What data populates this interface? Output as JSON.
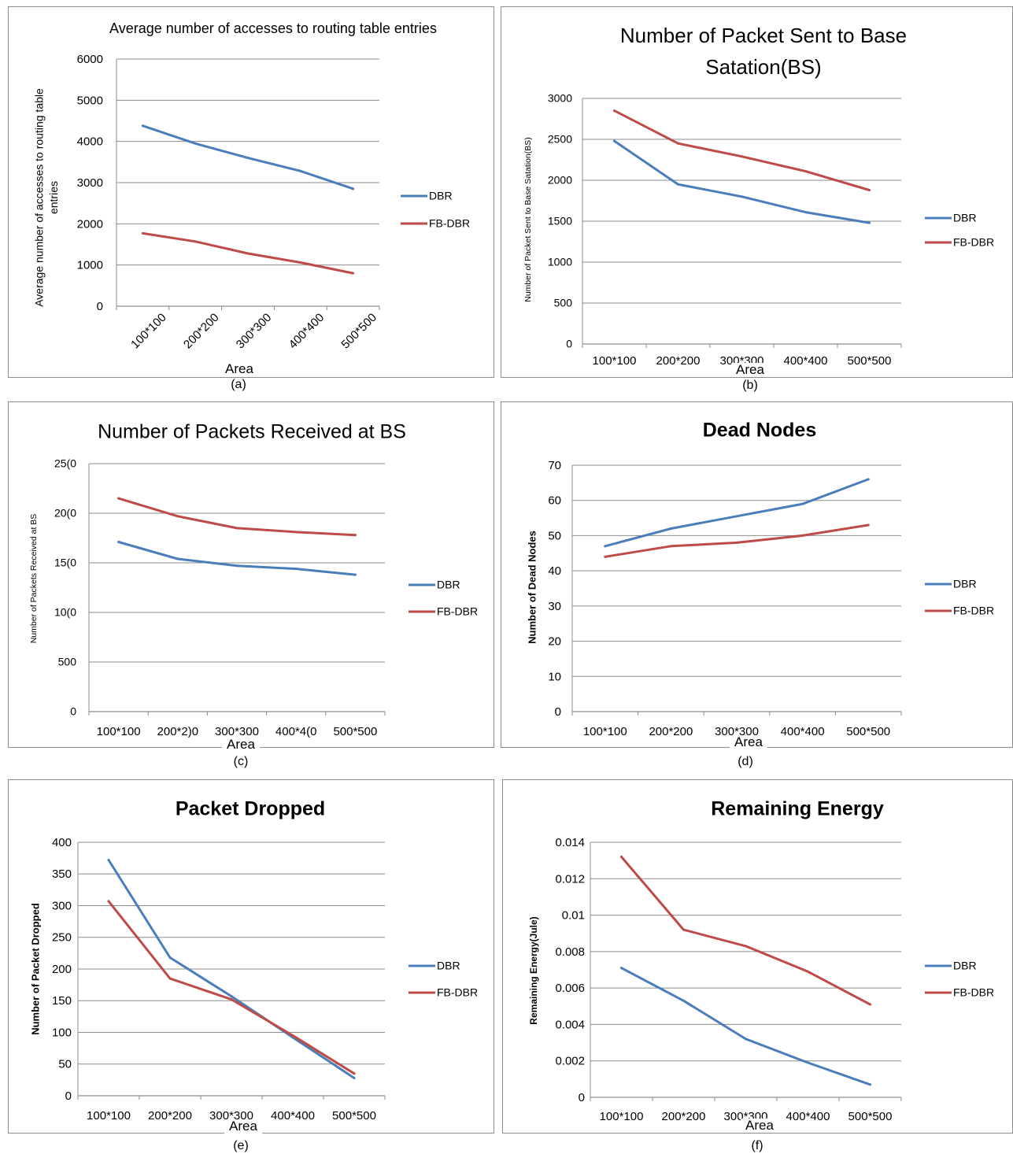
{
  "colors": {
    "DBR": "#4a7ebb",
    "FB-DBR": "#be4b48",
    "grid": "#8c8c8c"
  },
  "charts": [
    {
      "id": "a",
      "caption": "(a)",
      "chart_data": {
        "type": "line",
        "title": "Average number  of accesses to routing table entries",
        "ylabel": "Average number of accesses to routing table entries",
        "xlabel": "Area",
        "categories": [
          "100*100",
          "200*200",
          "300*300",
          "400*400",
          "500*500"
        ],
        "ylim": [
          0,
          6000
        ],
        "yticks": [
          "0",
          "1000",
          "2000",
          "3000",
          "4000",
          "5000",
          "6000"
        ],
        "tick_rotation": -45,
        "grid": true,
        "legend": "right",
        "series": [
          {
            "name": "DBR",
            "values": [
              4380,
              3950,
              3600,
              3280,
              2850
            ]
          },
          {
            "name": "FB-DBR",
            "values": [
              1770,
              1570,
              1280,
              1060,
              800
            ]
          }
        ]
      }
    },
    {
      "id": "b",
      "caption": "(b)",
      "chart_data": {
        "type": "line",
        "title": "Number of Packet Sent to Base Satation(BS)",
        "ylabel": "Number of Packet Sent to Base Satation(BS)",
        "xlabel": "Area",
        "categories": [
          "100*100",
          "200*200",
          "300*300",
          "400*400",
          "500*500"
        ],
        "ylim": [
          0,
          3000
        ],
        "yticks": [
          "0",
          "500",
          "1000",
          "1500",
          "2000",
          "2500",
          "3000"
        ],
        "grid": true,
        "legend": "right",
        "series": [
          {
            "name": "DBR",
            "values": [
              2480,
              1950,
              1800,
              1610,
              1480
            ]
          },
          {
            "name": "FB-DBR",
            "values": [
              2850,
              2450,
              2290,
              2110,
              1880
            ]
          }
        ]
      }
    },
    {
      "id": "c",
      "caption": "(c)",
      "chart_data": {
        "type": "line",
        "title": "Number of Packets Received at BS",
        "ylabel": "Number of Packets Received at BS",
        "xlabel": "Area",
        "categories": [
          "100*100",
          "200*2)0",
          "300*300",
          "400*4(0",
          "500*500"
        ],
        "ylim": [
          0,
          2500
        ],
        "yticks": [
          "0",
          "500",
          "10(0",
          "15(0",
          "20(0",
          "25(0"
        ],
        "grid": true,
        "legend": "right",
        "series": [
          {
            "name": "DBR",
            "values": [
              1710,
              1540,
              1470,
              1440,
              1380
            ]
          },
          {
            "name": "FB-DBR",
            "values": [
              2150,
              1970,
              1850,
              1810,
              1780
            ]
          }
        ]
      }
    },
    {
      "id": "d",
      "caption": "(d)",
      "chart_data": {
        "type": "line",
        "title": "Dead Nodes",
        "ylabel": "Number of Dead Nodes",
        "xlabel": "Area",
        "categories": [
          "100*100",
          "200*200",
          "300*300",
          "400*400",
          "500*500"
        ],
        "ylim": [
          0,
          70
        ],
        "yticks": [
          "0",
          "10",
          "20",
          "30",
          "40",
          "50",
          "60",
          "70"
        ],
        "grid": true,
        "legend": "right",
        "series": [
          {
            "name": "DBR",
            "values": [
              47,
              52,
              55.5,
              59,
              66
            ]
          },
          {
            "name": "FB-DBR",
            "values": [
              44,
              47,
              48,
              50,
              53
            ]
          }
        ]
      }
    },
    {
      "id": "e",
      "caption": "(e)",
      "chart_data": {
        "type": "line",
        "title": "Packet Dropped",
        "ylabel": "Number of Packet Dropped",
        "xlabel": "Area",
        "categories": [
          "100*100",
          "200*200",
          "300*300",
          "400*400",
          "500*500"
        ],
        "ylim": [
          0,
          400
        ],
        "yticks": [
          "0",
          "50",
          "100",
          "150",
          "200",
          "250",
          "300",
          "350",
          "400"
        ],
        "grid": true,
        "legend": "right",
        "series": [
          {
            "name": "DBR",
            "values": [
              372,
              218,
              157,
              92,
              28
            ]
          },
          {
            "name": "FB-DBR",
            "values": [
              307,
              185,
              152,
              95,
              35
            ]
          }
        ]
      }
    },
    {
      "id": "f",
      "caption": "(f)",
      "chart_data": {
        "type": "line",
        "title": "Remaining Energy",
        "ylabel": "Remaining Energy(Jule)",
        "xlabel": "Area",
        "categories": [
          "100*100",
          "200*200",
          "300*300",
          "400*400",
          "500*500"
        ],
        "ylim": [
          0,
          0.014
        ],
        "yticks": [
          "0",
          "0.002",
          "0.004",
          "0.006",
          "0.008",
          "0.01",
          "0.012",
          "0.014"
        ],
        "grid": true,
        "legend": "right",
        "series": [
          {
            "name": "DBR",
            "values": [
              0.0071,
              0.0053,
              0.0032,
              0.0019,
              0.0007
            ]
          },
          {
            "name": "FB-DBR",
            "values": [
              0.0132,
              0.0092,
              0.0083,
              0.0069,
              0.0051
            ]
          }
        ]
      }
    }
  ]
}
